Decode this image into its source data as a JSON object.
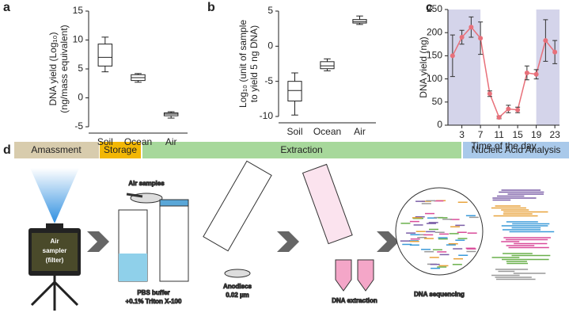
{
  "panels": [
    "a",
    "b",
    "c",
    "d"
  ],
  "chart_data": [
    {
      "type": "box",
      "ylabel": [
        "DNA yield (Log₁₀)",
        "(ng/mass equivalent)"
      ],
      "categories": [
        "Soil",
        "Ocean",
        "Air"
      ],
      "boxes": [
        {
          "min": 4.5,
          "q1": 5.5,
          "median": 7,
          "q3": 9.3,
          "max": 10.5
        },
        {
          "min": 2.7,
          "q1": 3.0,
          "median": 3.5,
          "q3": 4.0,
          "max": 4.2
        },
        {
          "min": -3.5,
          "q1": -3.1,
          "median": -2.8,
          "q3": -2.6,
          "max": -2.4
        }
      ],
      "ylim": [
        -5,
        15
      ],
      "yticks": [
        -5,
        0,
        5,
        10,
        15
      ]
    },
    {
      "type": "box",
      "ylabel": [
        "Log₁₀ (unit of sample",
        "to yield 5 ng DNA)"
      ],
      "categories": [
        "Soil",
        "Ocean",
        "Air"
      ],
      "boxes": [
        {
          "min": -9.8,
          "q1": -7.8,
          "median": -6.3,
          "q3": -5,
          "max": -3.8
        },
        {
          "min": -3.5,
          "q1": -3.2,
          "median": -2.8,
          "q3": -2.2,
          "max": -1.8
        },
        {
          "min": 3.1,
          "q1": 3.3,
          "median": 3.5,
          "q3": 3.8,
          "max": 4.3
        }
      ],
      "ylim": [
        -10,
        5
      ],
      "yticks": [
        -10,
        -5,
        0,
        5
      ]
    },
    {
      "type": "line",
      "ylabel": [
        "DNA yield (ng)"
      ],
      "xlabel": "Time of the day",
      "x": [
        1,
        3,
        5,
        7,
        9,
        11,
        13,
        15,
        17,
        19,
        21,
        23
      ],
      "values": [
        150,
        190,
        212,
        188,
        68,
        17,
        35,
        33,
        113,
        110,
        183,
        158
      ],
      "errors": [
        45,
        15,
        22,
        35,
        6,
        3,
        8,
        6,
        15,
        10,
        45,
        25
      ],
      "color": "#e8707a",
      "shaded": [
        [
          0,
          7
        ],
        [
          19,
          24
        ]
      ],
      "shade_color": "#d4d4ea",
      "xlim": [
        0,
        24
      ],
      "xticks": [
        3,
        7,
        11,
        15,
        19,
        23
      ],
      "ylim": [
        0,
        250
      ],
      "yticks": [
        0,
        50,
        100,
        150,
        200,
        250
      ]
    }
  ],
  "diagram": {
    "stages": [
      "Amassment",
      "Storage",
      "Extraction",
      "Nucleic Acid Analysis"
    ],
    "sampler": [
      "Air",
      "sampler",
      "(filter)"
    ],
    "air_samples": "Air samples",
    "pbs": [
      "PBS buffer",
      "+0.1% Triton X-100"
    ],
    "anodiscs": [
      "Anodiscs",
      "0.02 µm"
    ],
    "dna_extraction": "DNA extraction",
    "dna_sequencing": "DNA sequencing"
  }
}
